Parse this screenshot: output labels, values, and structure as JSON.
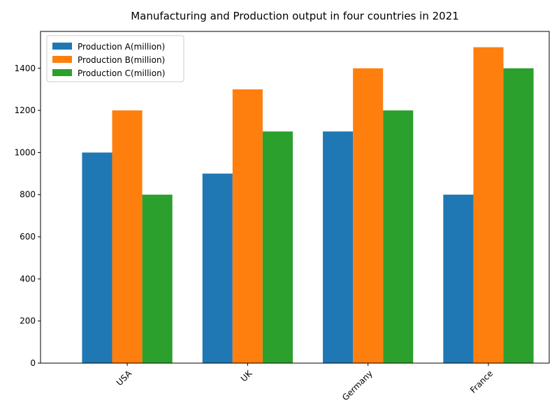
{
  "chart_data": {
    "type": "bar",
    "title": "Manufacturing and Production output in four countries in 2021",
    "categories": [
      "USA",
      "UK",
      "Germany",
      "France"
    ],
    "series": [
      {
        "name": "Production A(million)",
        "values": [
          1000,
          900,
          1100,
          800
        ],
        "color": "#1f77b4"
      },
      {
        "name": "Production B(million)",
        "values": [
          1200,
          1300,
          1400,
          1500
        ],
        "color": "#ff7f0e"
      },
      {
        "name": "Production C(million)",
        "values": [
          800,
          1100,
          1200,
          1400
        ],
        "color": "#2ca02c"
      }
    ],
    "ylim": [
      0,
      1575
    ],
    "yticks": [
      0,
      200,
      400,
      600,
      800,
      1000,
      1200,
      1400
    ],
    "xlabel": "",
    "ylabel": "",
    "grid": false,
    "legend_position": "top-left",
    "xtick_rotation_deg": 45
  }
}
